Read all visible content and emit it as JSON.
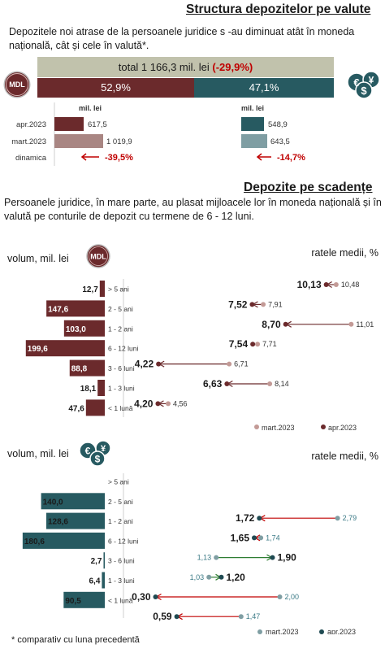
{
  "section1": {
    "title": "Structura depozitelor pe valute",
    "intro": "Depozitele noi atrase de la persoanele juridice s -au diminuat atât în moneda națională, cât și cele în valută*.",
    "total_label": "total 1 166,3 mil. lei",
    "total_change": "(-29,9%)",
    "share_mdl": "52,9%",
    "share_fx": "47,1%",
    "share_mdl_value": 52.9,
    "mdl_badge": "MDL",
    "fx_icon": "currency-coins-icon",
    "unit": "mil. lei",
    "row_labels": [
      "apr.2023",
      "mart.2023",
      "dinamica"
    ],
    "mdl_values": [
      "617,5",
      "1 019,9"
    ],
    "mdl_change": "-39,5%",
    "fx_values": [
      "548,9",
      "643,5"
    ],
    "fx_change": "-14,7%",
    "colors": {
      "mdl": "#6b2a2c",
      "mdl_light": "#a98683",
      "fx": "#275a61",
      "fx_light": "#7f9ea3",
      "total_bg": "#c1c2ac",
      "change": "#c00000"
    }
  },
  "section2": {
    "title": "Depozite pe scadențe",
    "intro": "Persoanele juridice, în mare parte, au plasat mijloacele lor în moneda națională și în valută pe conturile de depozit cu termene de 6 - 12 luni.",
    "footnote": "* comparativ cu luna precedentă"
  },
  "chart_data": [
    {
      "type": "bar",
      "title": "",
      "ylabel": "volum, mil. lei",
      "badge": "MDL",
      "categories": [
        "> 5 ani",
        "2 - 5 ani",
        "1 - 2 ani",
        "6 - 12 luni",
        "3 - 6 luni",
        "1 - 3 luni",
        "< 1 lună"
      ],
      "values": [
        12.7,
        147.6,
        103.0,
        199.6,
        88.8,
        18.1,
        47.6
      ],
      "value_labels": [
        "12,7",
        "147,6",
        "103,0",
        "199,6",
        "88,8",
        "18,1",
        "47,6"
      ],
      "color": "#6b2a2c"
    },
    {
      "type": "scatter",
      "title": "ratele medii, %",
      "categories": [
        "> 5 ani",
        "2 - 5 ani",
        "1 - 2 ani",
        "6 - 12 luni",
        "3 - 6 luni",
        "1 - 3 luni",
        "< 1 lună"
      ],
      "series": [
        {
          "name": "mart.2023",
          "values": [
            10.48,
            7.91,
            11.01,
            7.71,
            6.71,
            8.14,
            4.56
          ],
          "labels": [
            "10,48",
            "7,91",
            "11,01",
            "7,71",
            "6,71",
            "8,14",
            "4,56"
          ],
          "color": "#c39a96"
        },
        {
          "name": "apr.2023",
          "values": [
            10.13,
            7.52,
            8.7,
            7.54,
            4.22,
            6.63,
            4.2
          ],
          "labels": [
            "10,13",
            "7,52",
            "8,70",
            "7,54",
            "4,22",
            "6,63",
            "4,20"
          ],
          "color": "#6b2a2c"
        }
      ],
      "xlim": [
        3.5,
        11.4
      ],
      "arrow_color": "#6b2a2c"
    },
    {
      "type": "bar",
      "title": "",
      "ylabel": "volum, mil. lei",
      "categories": [
        "> 5 ani",
        "2 - 5 ani",
        "1 - 2 ani",
        "6 - 12 luni",
        "3 - 6 luni",
        "1 - 3 luni",
        "< 1 lună"
      ],
      "values": [
        0,
        140.0,
        128.6,
        180.6,
        2.7,
        6.4,
        90.5
      ],
      "value_labels": [
        "",
        "140,0",
        "128,6",
        "180,6",
        "2,7",
        "6,4",
        "90,5"
      ],
      "color": "#275a61"
    },
    {
      "type": "scatter",
      "title": "ratele medii, %",
      "categories": [
        "> 5 ani",
        "2 - 5 ani",
        "1 - 2 ani",
        "6 - 12 luni",
        "3 - 6 luni",
        "1 - 3 luni",
        "< 1 lună"
      ],
      "series": [
        {
          "name": "mart.2023",
          "values": [
            null,
            2.79,
            1.74,
            1.13,
            1.03,
            2.0,
            1.47
          ],
          "labels": [
            "",
            "2,79",
            "1,74",
            "1,13",
            "1,03",
            "2,00",
            "1,47"
          ],
          "color": "#7f9ea3"
        },
        {
          "name": "apr.2023",
          "values": [
            null,
            1.72,
            1.65,
            1.9,
            1.2,
            0.3,
            0.59
          ],
          "labels": [
            "",
            "1,72",
            "1,65",
            "1,90",
            "1,20",
            "0,30",
            "0,59"
          ],
          "color": "#1f4a52"
        }
      ],
      "xlim": [
        0.15,
        2.95
      ],
      "arrow_colors": {
        "decrease": "#c00000",
        "increase": "#2e7d32"
      }
    }
  ]
}
